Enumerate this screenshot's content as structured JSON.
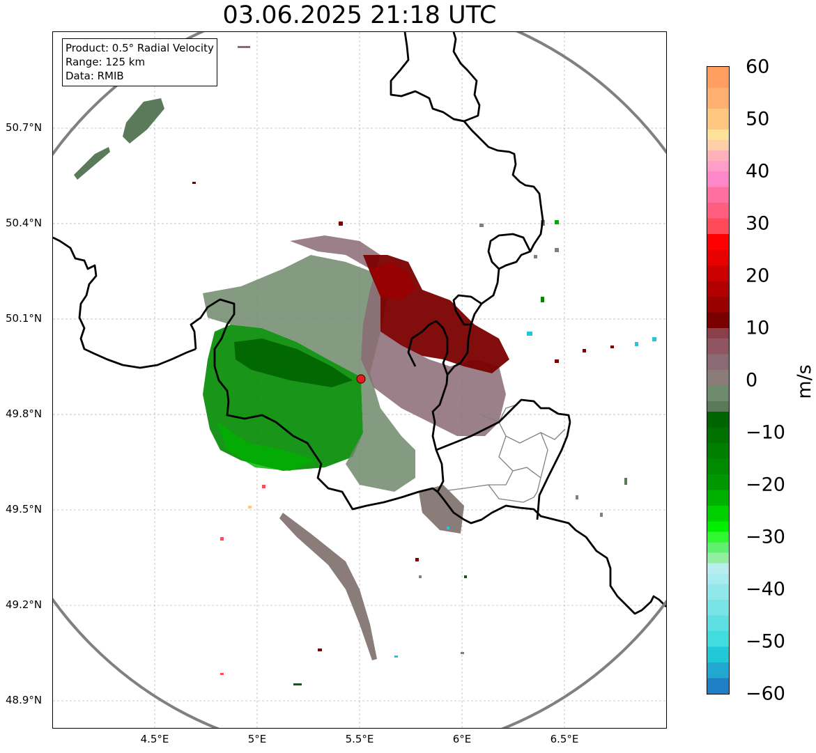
{
  "title": "03.06.2025 21:18 UTC",
  "info_box": {
    "product": "Product: 0.5° Radial Velocity",
    "range": "Range: 125 km",
    "source": "Data: RMIB"
  },
  "map": {
    "lon_range": [
      4.0,
      7.0
    ],
    "lat_range": [
      48.8,
      51.0
    ],
    "lat_ticks": [
      {
        "value": 50.7,
        "label": "50.7°N"
      },
      {
        "value": 50.4,
        "label": "50.4°N"
      },
      {
        "value": 50.1,
        "label": "50.1°N"
      },
      {
        "value": 49.8,
        "label": "49.8°N"
      },
      {
        "value": 49.5,
        "label": "49.5°N"
      },
      {
        "value": 49.2,
        "label": "49.2°N"
      },
      {
        "value": 48.9,
        "label": "48.9°N"
      }
    ],
    "lon_ticks": [
      {
        "value": 4.5,
        "label": "4.5°E"
      },
      {
        "value": 5.0,
        "label": "5°E"
      },
      {
        "value": 5.5,
        "label": "5.5°E"
      },
      {
        "value": 6.0,
        "label": "6°E"
      },
      {
        "value": 6.5,
        "label": "6.5°E"
      }
    ],
    "radar_site": {
      "lon": 5.505,
      "lat": 49.915
    },
    "range_ring_color": "#808080",
    "border_color": "#000000",
    "region_border_color": "#808080"
  },
  "colorbar": {
    "unit": "m/s",
    "min": -60,
    "max": 60,
    "tick_labels": [
      {
        "value": 60,
        "label": "60"
      },
      {
        "value": 50,
        "label": "50"
      },
      {
        "value": 40,
        "label": "40"
      },
      {
        "value": 30,
        "label": "30"
      },
      {
        "value": 20,
        "label": "20"
      },
      {
        "value": 10,
        "label": "10"
      },
      {
        "value": 0,
        "label": "0"
      },
      {
        "value": -10,
        "label": "−10"
      },
      {
        "value": -20,
        "label": "−20"
      },
      {
        "value": -30,
        "label": "−30"
      },
      {
        "value": -40,
        "label": "−40"
      },
      {
        "value": -50,
        "label": "−50"
      },
      {
        "value": -60,
        "label": "−60"
      }
    ],
    "bands": [
      {
        "from": 56,
        "to": 60,
        "color": "#ff9e5e"
      },
      {
        "from": 52,
        "to": 56,
        "color": "#ffb070"
      },
      {
        "from": 48,
        "to": 52,
        "color": "#ffc680"
      },
      {
        "from": 46,
        "to": 48,
        "color": "#ffe29a"
      },
      {
        "from": 44,
        "to": 46,
        "color": "#ffd0a8"
      },
      {
        "from": 42,
        "to": 44,
        "color": "#ffb0b8"
      },
      {
        "from": 40,
        "to": 42,
        "color": "#ff9ec8"
      },
      {
        "from": 37,
        "to": 40,
        "color": "#ff88c8"
      },
      {
        "from": 34,
        "to": 37,
        "color": "#ff70a0"
      },
      {
        "from": 31,
        "to": 34,
        "color": "#ff5e80"
      },
      {
        "from": 28,
        "to": 31,
        "color": "#ff4a5a"
      },
      {
        "from": 25,
        "to": 28,
        "color": "#ff0000"
      },
      {
        "from": 22,
        "to": 25,
        "color": "#e80000"
      },
      {
        "from": 19,
        "to": 22,
        "color": "#cc0000"
      },
      {
        "from": 16,
        "to": 19,
        "color": "#b20000"
      },
      {
        "from": 13,
        "to": 16,
        "color": "#990000"
      },
      {
        "from": 10,
        "to": 13,
        "color": "#7a0000"
      },
      {
        "from": 8,
        "to": 10,
        "color": "#8a4048"
      },
      {
        "from": 5,
        "to": 8,
        "color": "#905560"
      },
      {
        "from": 2,
        "to": 5,
        "color": "#8a6a74"
      },
      {
        "from": -1,
        "to": 2,
        "color": "#8a7c78"
      },
      {
        "from": -4,
        "to": -1,
        "color": "#6e8a6c"
      },
      {
        "from": -6,
        "to": -4,
        "color": "#5a7a5a"
      },
      {
        "from": -9,
        "to": -6,
        "color": "#006400"
      },
      {
        "from": -12,
        "to": -9,
        "color": "#007000"
      },
      {
        "from": -15,
        "to": -12,
        "color": "#007e00"
      },
      {
        "from": -18,
        "to": -15,
        "color": "#008a00"
      },
      {
        "from": -21,
        "to": -18,
        "color": "#009800"
      },
      {
        "from": -24,
        "to": -21,
        "color": "#00b000"
      },
      {
        "from": -27,
        "to": -24,
        "color": "#00d000"
      },
      {
        "from": -29,
        "to": -27,
        "color": "#00ee00"
      },
      {
        "from": -31,
        "to": -29,
        "color": "#30f830"
      },
      {
        "from": -33,
        "to": -31,
        "color": "#60f070"
      },
      {
        "from": -35,
        "to": -33,
        "color": "#90f0a0"
      },
      {
        "from": -37,
        "to": -35,
        "color": "#b8eef0"
      },
      {
        "from": -39,
        "to": -37,
        "color": "#a8ecf0"
      },
      {
        "from": -42,
        "to": -39,
        "color": "#90e8ea"
      },
      {
        "from": -45,
        "to": -42,
        "color": "#78e4e6"
      },
      {
        "from": -48,
        "to": -45,
        "color": "#5ee0e2"
      },
      {
        "from": -51,
        "to": -48,
        "color": "#40dcde"
      },
      {
        "from": -54,
        "to": -51,
        "color": "#20c8d8"
      },
      {
        "from": -57,
        "to": -54,
        "color": "#22a8d0"
      },
      {
        "from": -60,
        "to": -57,
        "color": "#1f80c8"
      }
    ]
  }
}
